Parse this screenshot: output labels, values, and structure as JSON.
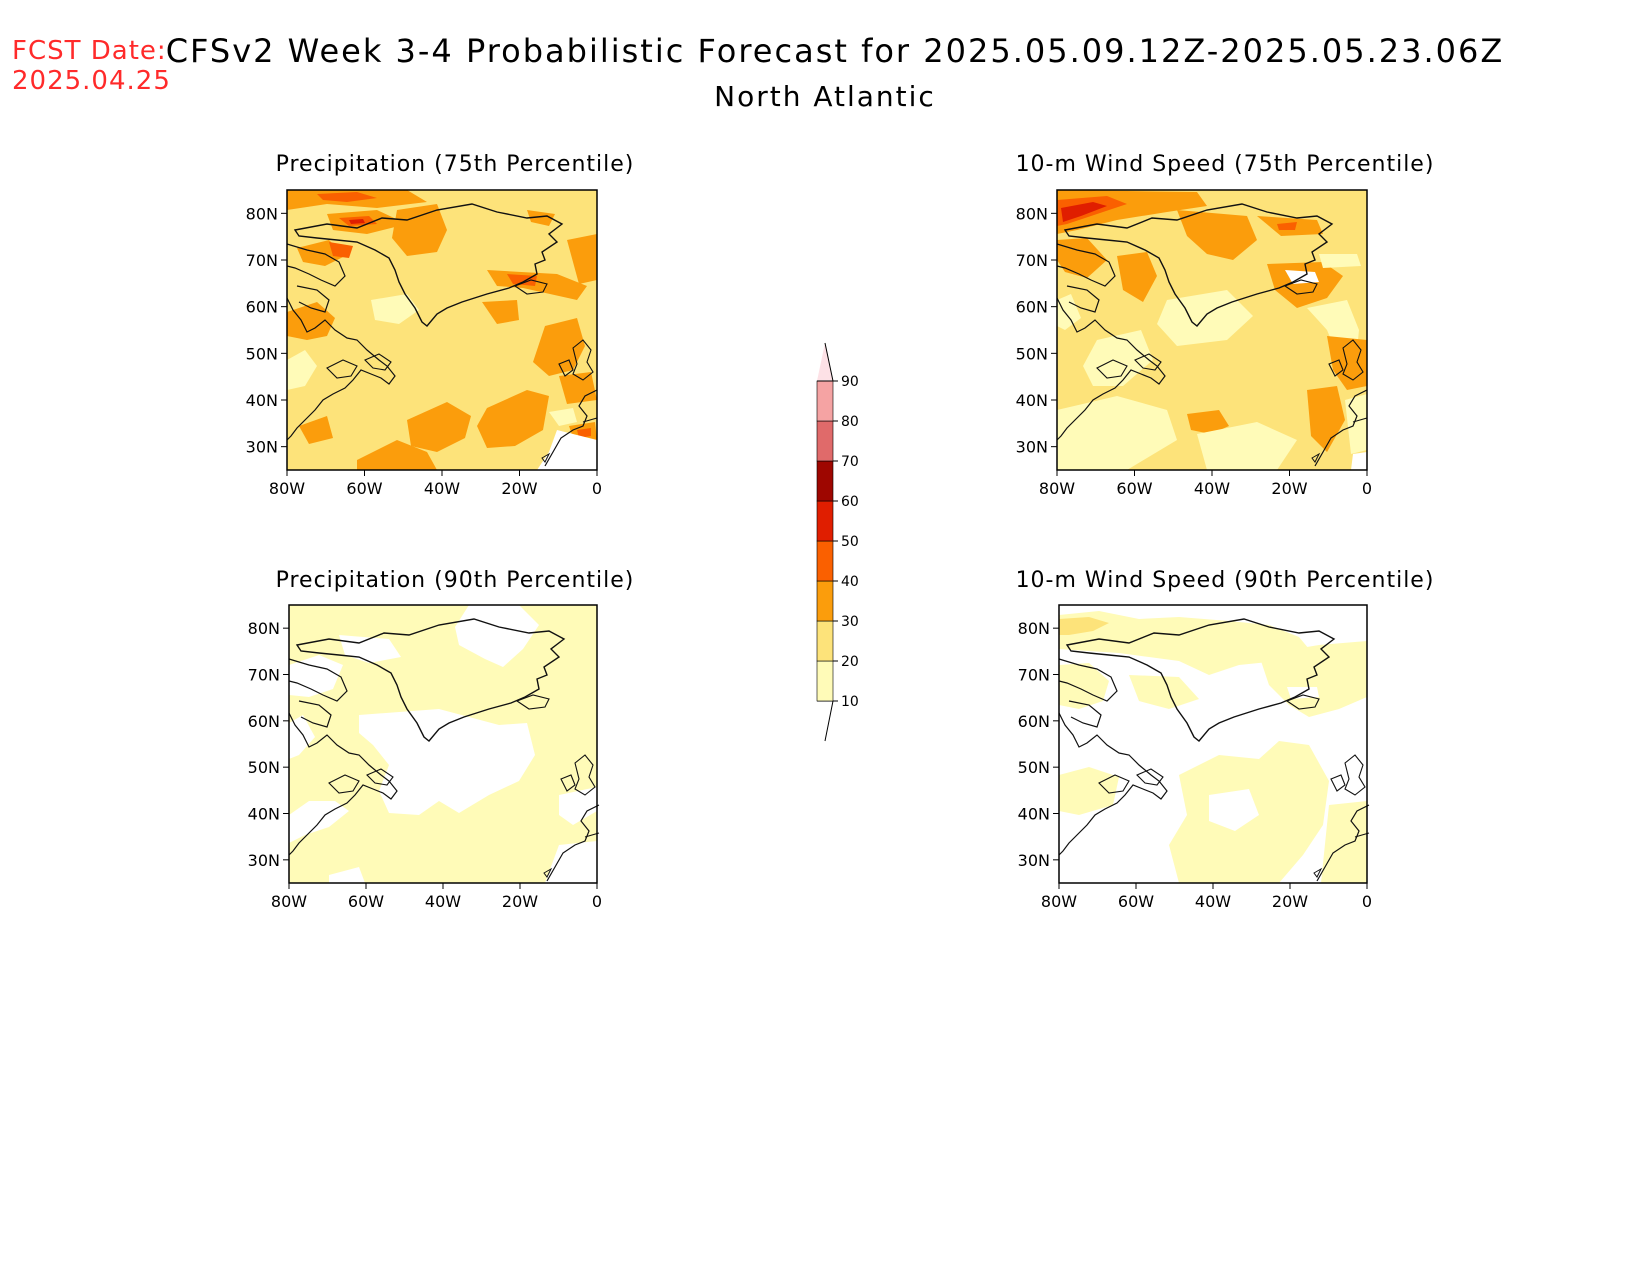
{
  "header": {
    "fcst_label": "FCST Date:",
    "fcst_date": "2025.04.25",
    "title": "CFSv2 Week 3-4 Probabilistic Forecast for 2025.05.09.12Z-2025.05.23.06Z",
    "subtitle": "North Atlantic"
  },
  "panels": [
    {
      "title": "Precipitation (75th Percentile)"
    },
    {
      "title": "10-m Wind Speed (75th Percentile)"
    },
    {
      "title": "Precipitation (90th Percentile)"
    },
    {
      "title": "10-m Wind Speed (90th Percentile)"
    }
  ],
  "axes": {
    "lat_labels": [
      "80N",
      "70N",
      "60N",
      "50N",
      "40N",
      "30N"
    ],
    "lon_labels": [
      "80W",
      "60W",
      "40W",
      "20W",
      "0"
    ]
  },
  "colorbar": {
    "labels": [
      "10",
      "20",
      "30",
      "40",
      "50",
      "60",
      "70",
      "80",
      "90"
    ],
    "colors": [
      "#fffbb8",
      "#fde37a",
      "#fb9d0c",
      "#fa6000",
      "#e01e00",
      "#9e0600",
      "#e06a6a",
      "#f5a3a3",
      "#fde1e6"
    ]
  }
}
